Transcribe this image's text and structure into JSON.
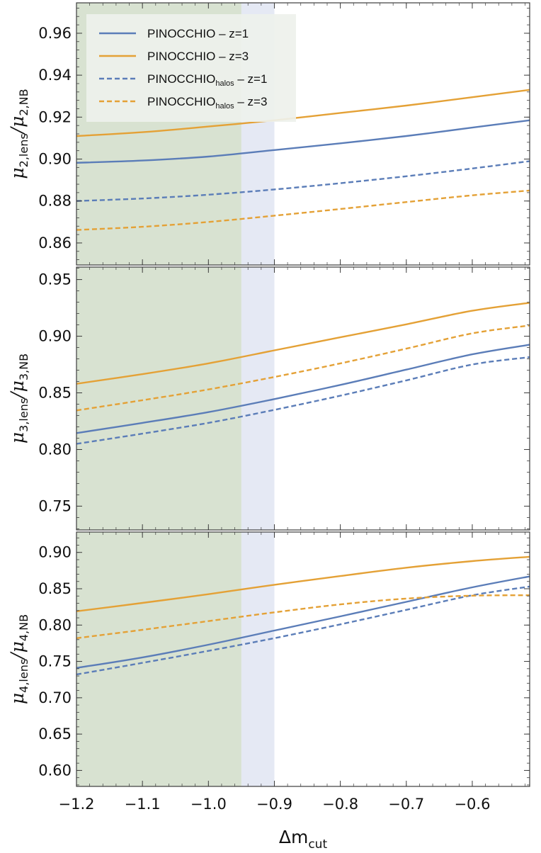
{
  "colors": {
    "blue": "#5b7db8",
    "orange": "#e4a136",
    "green_band": "#d8e2d1",
    "blue_band": "#e5e9f4",
    "legend_bg": "#eef1ec",
    "frame": "#3c3c3c"
  },
  "legend": {
    "entries": [
      {
        "prefix": "PINOCCHIO",
        "sub": "",
        "suffix": " – z=1"
      },
      {
        "prefix": "PINOCCHIO",
        "sub": "",
        "suffix": " – z=3"
      },
      {
        "prefix": "PINOCCHIO",
        "sub": "halos",
        "suffix": " – z=1"
      },
      {
        "prefix": "PINOCCHIO",
        "sub": "halos",
        "suffix": " – z=3"
      }
    ]
  },
  "xaxis": {
    "label_main": "Δm",
    "label_sub": "cut",
    "ticks": [
      -1.2,
      -1.1,
      -1.0,
      -0.9,
      -0.8,
      -0.7,
      -0.6
    ],
    "tick_labels": [
      "−1.2",
      "−1.1",
      "−1.0",
      "−0.9",
      "−0.8",
      "−0.7",
      "−0.6"
    ],
    "xlim": [
      -1.2,
      -0.513
    ]
  },
  "chart_data": [
    {
      "type": "line",
      "ylabel_main": "μ",
      "ylabel_sub": "2,lens",
      "ylabel_main2": "μ",
      "ylabel_sub2": "2,NB",
      "ylim": [
        0.8495,
        0.9745
      ],
      "yticks": [
        0.86,
        0.88,
        0.9,
        0.92,
        0.94,
        0.96
      ],
      "ytick_labels": [
        "0.86",
        "0.88",
        "0.90",
        "0.92",
        "0.94",
        "0.96"
      ],
      "shaded_regions": [
        {
          "x": [
            -1.2,
            -0.95
          ],
          "color": "green"
        },
        {
          "x": [
            -0.95,
            -0.9
          ],
          "color": "blue"
        }
      ],
      "x": [
        -1.2,
        -1.1,
        -1.0,
        -0.9,
        -0.8,
        -0.7,
        -0.6,
        -0.513
      ],
      "series": [
        {
          "style": "solid",
          "color": "blue",
          "values": [
            0.8982,
            0.8993,
            0.9012,
            0.9043,
            0.9075,
            0.911,
            0.915,
            0.9185
          ]
        },
        {
          "style": "solid",
          "color": "orange",
          "values": [
            0.911,
            0.9128,
            0.9155,
            0.9185,
            0.922,
            0.9255,
            0.9295,
            0.933
          ]
        },
        {
          "style": "dashed",
          "color": "blue",
          "values": [
            0.88,
            0.8812,
            0.883,
            0.8855,
            0.8885,
            0.8918,
            0.8955,
            0.899
          ]
        },
        {
          "style": "dashed",
          "color": "orange",
          "values": [
            0.8662,
            0.8677,
            0.87,
            0.873,
            0.8762,
            0.8795,
            0.8827,
            0.885
          ]
        }
      ]
    },
    {
      "type": "line",
      "ylabel_main": "μ",
      "ylabel_sub": "3,lens",
      "ylabel_main2": "μ",
      "ylabel_sub2": "3,NB",
      "ylim": [
        0.729,
        0.961
      ],
      "yticks": [
        0.75,
        0.8,
        0.85,
        0.9,
        0.95
      ],
      "ytick_labels": [
        "0.75",
        "0.80",
        "0.85",
        "0.90",
        "0.95"
      ],
      "shaded_regions": [
        {
          "x": [
            -1.2,
            -0.95
          ],
          "color": "green"
        },
        {
          "x": [
            -0.95,
            -0.9
          ],
          "color": "blue"
        }
      ],
      "x": [
        -1.2,
        -1.1,
        -1.0,
        -0.9,
        -0.8,
        -0.7,
        -0.6,
        -0.513
      ],
      "series": [
        {
          "style": "solid",
          "color": "blue",
          "values": [
            0.8145,
            0.8235,
            0.833,
            0.8445,
            0.857,
            0.8705,
            0.884,
            0.8925
          ]
        },
        {
          "style": "solid",
          "color": "orange",
          "values": [
            0.858,
            0.8665,
            0.876,
            0.8875,
            0.899,
            0.9105,
            0.9225,
            0.9295
          ]
        },
        {
          "style": "dashed",
          "color": "blue",
          "values": [
            0.805,
            0.814,
            0.8235,
            0.835,
            0.8475,
            0.861,
            0.875,
            0.8815
          ]
        },
        {
          "style": "dashed",
          "color": "orange",
          "values": [
            0.8345,
            0.8435,
            0.853,
            0.864,
            0.876,
            0.889,
            0.9025,
            0.9095
          ]
        }
      ]
    },
    {
      "type": "line",
      "ylabel_main": "μ",
      "ylabel_sub": "4,lens",
      "ylabel_main2": "μ",
      "ylabel_sub2": "4,NB",
      "ylim": [
        0.578,
        0.928
      ],
      "yticks": [
        0.6,
        0.65,
        0.7,
        0.75,
        0.8,
        0.85,
        0.9
      ],
      "ytick_labels": [
        "0.60",
        "0.65",
        "0.70",
        "0.75",
        "0.80",
        "0.85",
        "0.90"
      ],
      "shaded_regions": [
        {
          "x": [
            -1.2,
            -0.95
          ],
          "color": "green"
        },
        {
          "x": [
            -0.95,
            -0.9
          ],
          "color": "blue"
        }
      ],
      "x": [
        -1.2,
        -1.1,
        -1.0,
        -0.9,
        -0.8,
        -0.7,
        -0.6,
        -0.513
      ],
      "series": [
        {
          "style": "solid",
          "color": "blue",
          "values": [
            0.741,
            0.7555,
            0.773,
            0.7925,
            0.812,
            0.832,
            0.852,
            0.867
          ]
        },
        {
          "style": "solid",
          "color": "orange",
          "values": [
            0.819,
            0.8305,
            0.8425,
            0.8555,
            0.8675,
            0.879,
            0.888,
            0.894
          ]
        },
        {
          "style": "dashed",
          "color": "blue",
          "values": [
            0.732,
            0.748,
            0.7645,
            0.782,
            0.801,
            0.821,
            0.841,
            0.853
          ]
        },
        {
          "style": "dashed",
          "color": "orange",
          "values": [
            0.782,
            0.7935,
            0.8055,
            0.8175,
            0.8285,
            0.8365,
            0.8405,
            0.841
          ]
        }
      ]
    }
  ]
}
